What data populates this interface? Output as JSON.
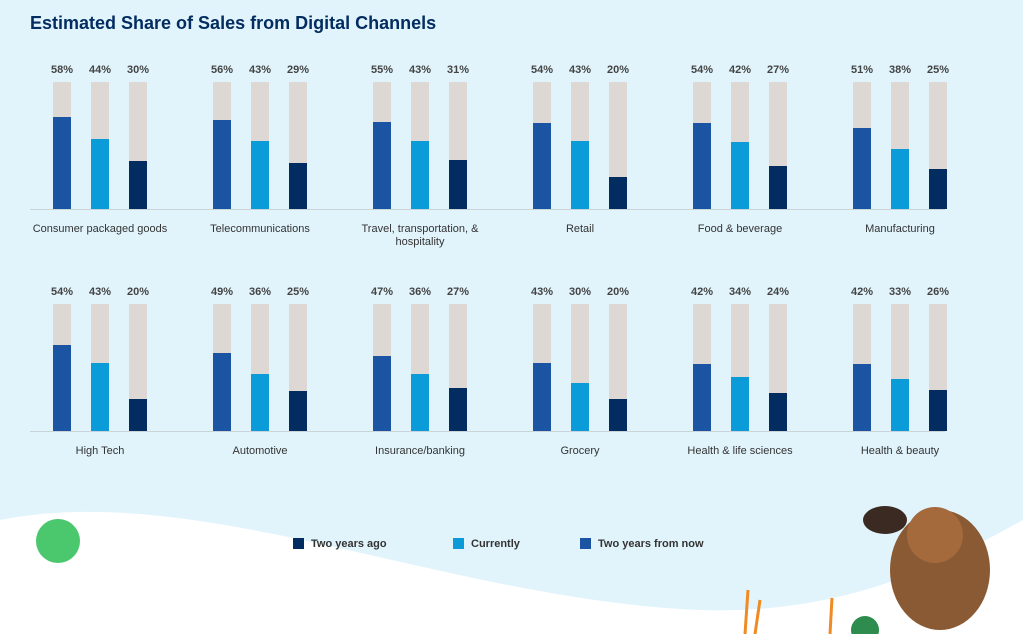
{
  "chart_data": {
    "type": "bar",
    "title": "Estimated Share of Sales from Digital Channels",
    "categories": [
      "Consumer packaged goods",
      "Telecommunications",
      "Travel, transportation, & hospitality",
      "Retail",
      "Food & beverage",
      "Manufacturing",
      "High Tech",
      "Automotive",
      "Insurance/banking",
      "Grocery",
      "Health & life sciences",
      "Health & beauty"
    ],
    "ylim": [
      0,
      80
    ],
    "series": [
      {
        "name": "Two years ago",
        "color": "#032d60",
        "values": [
          30,
          29,
          31,
          20,
          27,
          25,
          20,
          25,
          27,
          20,
          24,
          26
        ],
        "value_labels": [
          "30%",
          "29%",
          "31%",
          "20%",
          "27%",
          "25%",
          "20%",
          "25%",
          "27%",
          "20%",
          "24%",
          "26%"
        ]
      },
      {
        "name": "Currently",
        "color": "#0b9bd9",
        "values": [
          44,
          43,
          43,
          43,
          42,
          38,
          43,
          36,
          36,
          30,
          34,
          33
        ],
        "value_labels": [
          "44%",
          "43%",
          "43%",
          "43%",
          "42%",
          "38%",
          "43%",
          "36%",
          "36%",
          "30%",
          "34%",
          "33%"
        ]
      },
      {
        "name": "Two years from now",
        "color": "#1b54a3",
        "values": [
          58,
          56,
          55,
          54,
          54,
          51,
          54,
          49,
          47,
          43,
          42,
          42
        ],
        "value_labels": [
          "58%",
          "56%",
          "55%",
          "54%",
          "54%",
          "51%",
          "54%",
          "49%",
          "47%",
          "43%",
          "42%",
          "42%"
        ]
      }
    ]
  }
}
